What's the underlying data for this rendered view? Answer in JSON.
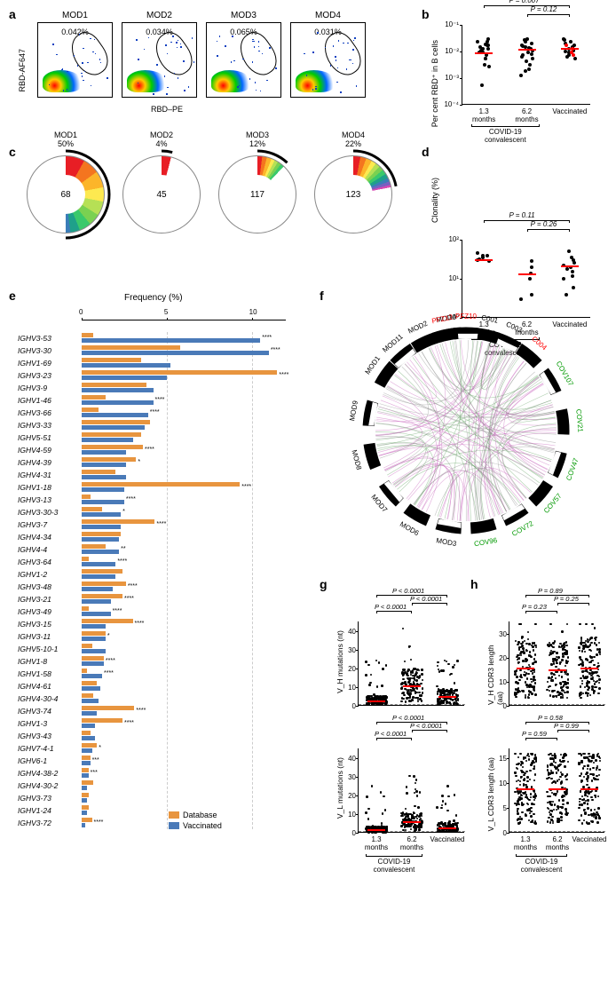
{
  "panel_a": {
    "label": "a",
    "y_axis": "RBD-AF647",
    "x_axis": "RBD–PE",
    "samples": [
      {
        "name": "MOD1",
        "pct": "0.042%"
      },
      {
        "name": "MOD2",
        "pct": "0.034%"
      },
      {
        "name": "MOD3",
        "pct": "0.065%"
      },
      {
        "name": "MOD4",
        "pct": "0.031%"
      }
    ]
  },
  "panel_b": {
    "label": "b",
    "type": "scatter",
    "y_axis": "Per cent RBD⁺ in B cells",
    "ylim": [
      0.0001,
      1
    ],
    "yscale": "log",
    "yticks": [
      "10⁻⁴",
      "10⁻³",
      "10⁻²",
      "10⁻¹"
    ],
    "x_categories": [
      "1.3\nmonths",
      "6.2\nmonths",
      "Vaccinated"
    ],
    "x_group_label": "COVID-19\nconvalescent",
    "pvals": [
      {
        "from": 0,
        "to": 2,
        "text": "P = 0.007"
      },
      {
        "from": 1,
        "to": 2,
        "text": "P = 0.12"
      }
    ],
    "median_color": "#ff0000",
    "medians": [
      0.04,
      0.06,
      0.07
    ],
    "data": [
      [
        0.001,
        0.008,
        0.01,
        0.02,
        0.02,
        0.03,
        0.04,
        0.04,
        0.05,
        0.06,
        0.06,
        0.08,
        0.1,
        0.1,
        0.11,
        0.15,
        0.15,
        0.2
      ],
      [
        0.003,
        0.005,
        0.006,
        0.01,
        0.015,
        0.02,
        0.025,
        0.03,
        0.035,
        0.04,
        0.05,
        0.06,
        0.07,
        0.08,
        0.09,
        0.1,
        0.12,
        0.14,
        0.18,
        0.2
      ],
      [
        0.02,
        0.025,
        0.03,
        0.04,
        0.045,
        0.05,
        0.06,
        0.07,
        0.08,
        0.1,
        0.12,
        0.15,
        0.18,
        0.2
      ]
    ],
    "red_points_group": 2,
    "red_points": [
      0.03,
      0.04,
      0.06,
      0.1
    ]
  },
  "panel_c": {
    "label": "c",
    "pies": [
      {
        "name": "MOD1",
        "pct": "50%",
        "n": 68,
        "slices": [
          {
            "color": "#e81e25",
            "frac": 0.08
          },
          {
            "color": "#f4751f",
            "frac": 0.07
          },
          {
            "color": "#fcb52a",
            "frac": 0.07
          },
          {
            "color": "#fde950",
            "frac": 0.06
          },
          {
            "color": "#b6e055",
            "frac": 0.06
          },
          {
            "color": "#7ad151",
            "frac": 0.05
          },
          {
            "color": "#3ac96b",
            "frac": 0.05
          },
          {
            "color": "#1fa08a",
            "frac": 0.04
          },
          {
            "color": "#3b7db8",
            "frac": 0.02
          }
        ],
        "arc_color": "#000"
      },
      {
        "name": "MOD2",
        "pct": "4%",
        "n": 45,
        "slices": [
          {
            "color": "#e81e25",
            "frac": 0.04
          }
        ],
        "arc_color": "#000"
      },
      {
        "name": "MOD3",
        "pct": "12%",
        "n": 117,
        "slices": [
          {
            "color": "#e81e25",
            "frac": 0.02
          },
          {
            "color": "#f4751f",
            "frac": 0.02
          },
          {
            "color": "#fcb52a",
            "frac": 0.02
          },
          {
            "color": "#fde950",
            "frac": 0.015
          },
          {
            "color": "#b6e055",
            "frac": 0.015
          },
          {
            "color": "#7ad151",
            "frac": 0.015
          },
          {
            "color": "#3ac96b",
            "frac": 0.015
          }
        ],
        "arc_color": "#000"
      },
      {
        "name": "MOD4",
        "pct": "22%",
        "n": 123,
        "slices": [
          {
            "color": "#e81e25",
            "frac": 0.03
          },
          {
            "color": "#f4751f",
            "frac": 0.025
          },
          {
            "color": "#fcb52a",
            "frac": 0.025
          },
          {
            "color": "#fde950",
            "frac": 0.02
          },
          {
            "color": "#b6e055",
            "frac": 0.02
          },
          {
            "color": "#7ad151",
            "frac": 0.02
          },
          {
            "color": "#3ac96b",
            "frac": 0.02
          },
          {
            "color": "#1fa08a",
            "frac": 0.02
          },
          {
            "color": "#3b7db8",
            "frac": 0.015
          },
          {
            "color": "#7860c0",
            "frac": 0.015
          },
          {
            "color": "#d748b3",
            "frac": 0.01
          }
        ],
        "arc_color": "#000"
      }
    ]
  },
  "panel_d": {
    "label": "d",
    "type": "scatter",
    "y_axis": "Clonality (%)",
    "ylim": [
      1,
      100
    ],
    "yscale": "log",
    "yticks": [
      "10⁰",
      "10¹",
      "10²"
    ],
    "x_categories": [
      "1.3\nmonths",
      "6.2\nmonths",
      "Vaccinated"
    ],
    "x_group_label": "COVID-19\nconvalescent",
    "pvals": [
      {
        "from": 0,
        "to": 2,
        "text": "P = 0.11"
      },
      {
        "from": 1,
        "to": 2,
        "text": "P = 0.26"
      }
    ],
    "median_color": "#ff0000",
    "medians": [
      32,
      14,
      22
    ],
    "data": [
      [
        28,
        30,
        32,
        35,
        38,
        40,
        45
      ],
      [
        3,
        4,
        10,
        14,
        20,
        28
      ],
      [
        4,
        6,
        10,
        12,
        15,
        18,
        20,
        22,
        25,
        30,
        35,
        50
      ]
    ]
  },
  "panel_e": {
    "label": "e",
    "type": "bar",
    "x_axis_title": "Frequency (%)",
    "xlim": [
      0,
      12
    ],
    "xticks": [
      0,
      5,
      10
    ],
    "gridline_color": "#cccccc",
    "legend": [
      {
        "label": "Database",
        "color": "#e8953f"
      },
      {
        "label": "Vaccinated",
        "color": "#4a7ab8"
      }
    ],
    "genes": [
      {
        "name": "IGHV3-53",
        "db": 0.7,
        "vac": 10.5,
        "sig": "****"
      },
      {
        "name": "IGHV3-30",
        "db": 5.8,
        "vac": 11.0,
        "sig": "****"
      },
      {
        "name": "IGHV1-69",
        "db": 3.5,
        "vac": 5.2,
        "sig": ""
      },
      {
        "name": "IGHV3-23",
        "db": 11.5,
        "vac": 5.0,
        "sig": "****"
      },
      {
        "name": "IGHV3-9",
        "db": 3.8,
        "vac": 4.2,
        "sig": ""
      },
      {
        "name": "IGHV1-46",
        "db": 1.4,
        "vac": 4.2,
        "sig": "****"
      },
      {
        "name": "IGHV3-66",
        "db": 1.0,
        "vac": 3.9,
        "sig": "****"
      },
      {
        "name": "IGHV3-33",
        "db": 4.0,
        "vac": 3.7,
        "sig": ""
      },
      {
        "name": "IGHV5-51",
        "db": 3.5,
        "vac": 3.0,
        "sig": ""
      },
      {
        "name": "IGHV4-59",
        "db": 3.6,
        "vac": 2.6,
        "sig": "****"
      },
      {
        "name": "IGHV4-39",
        "db": 3.2,
        "vac": 2.6,
        "sig": "*"
      },
      {
        "name": "IGHV4-31",
        "db": 2.0,
        "vac": 2.6,
        "sig": ""
      },
      {
        "name": "IGHV1-18",
        "db": 9.3,
        "vac": 2.5,
        "sig": "****"
      },
      {
        "name": "IGHV3-13",
        "db": 0.5,
        "vac": 2.5,
        "sig": "****"
      },
      {
        "name": "IGHV3-30-3",
        "db": 1.2,
        "vac": 2.3,
        "sig": "*"
      },
      {
        "name": "IGHV3-7",
        "db": 4.3,
        "vac": 2.3,
        "sig": "****"
      },
      {
        "name": "IGHV4-34",
        "db": 2.3,
        "vac": 2.2,
        "sig": ""
      },
      {
        "name": "IGHV4-4",
        "db": 1.4,
        "vac": 2.2,
        "sig": "**"
      },
      {
        "name": "IGHV3-64",
        "db": 0.4,
        "vac": 2.0,
        "sig": "****"
      },
      {
        "name": "IGHV1-2",
        "db": 2.4,
        "vac": 2.0,
        "sig": ""
      },
      {
        "name": "IGHV3-48",
        "db": 2.6,
        "vac": 1.8,
        "sig": "****"
      },
      {
        "name": "IGHV3-21",
        "db": 2.4,
        "vac": 1.7,
        "sig": "****"
      },
      {
        "name": "IGHV3-49",
        "db": 0.4,
        "vac": 1.7,
        "sig": "****"
      },
      {
        "name": "IGHV3-15",
        "db": 3.0,
        "vac": 1.4,
        "sig": "****"
      },
      {
        "name": "IGHV3-11",
        "db": 1.4,
        "vac": 1.4,
        "sig": "*"
      },
      {
        "name": "IGHV5-10-1",
        "db": 0.6,
        "vac": 1.4,
        "sig": ""
      },
      {
        "name": "IGHV1-8",
        "db": 1.3,
        "vac": 1.3,
        "sig": "****"
      },
      {
        "name": "IGHV1-58",
        "db": 0.3,
        "vac": 1.2,
        "sig": "****"
      },
      {
        "name": "IGHV4-61",
        "db": 0.9,
        "vac": 1.1,
        "sig": ""
      },
      {
        "name": "IGHV4-30-4",
        "db": 0.7,
        "vac": 1.0,
        "sig": ""
      },
      {
        "name": "IGHV3-74",
        "db": 3.1,
        "vac": 0.9,
        "sig": "****"
      },
      {
        "name": "IGHV1-3",
        "db": 2.4,
        "vac": 0.8,
        "sig": "****"
      },
      {
        "name": "IGHV3-43",
        "db": 0.5,
        "vac": 0.8,
        "sig": ""
      },
      {
        "name": "IGHV7-4-1",
        "db": 0.9,
        "vac": 0.6,
        "sig": "*"
      },
      {
        "name": "IGHV6-1",
        "db": 0.5,
        "vac": 0.5,
        "sig": "***"
      },
      {
        "name": "IGHV4-38-2",
        "db": 0.4,
        "vac": 0.4,
        "sig": "***"
      },
      {
        "name": "IGHV4-30-2",
        "db": 0.7,
        "vac": 0.3,
        "sig": ""
      },
      {
        "name": "IGHV3-73",
        "db": 0.4,
        "vac": 0.3,
        "sig": ""
      },
      {
        "name": "IGHV1-24",
        "db": 0.4,
        "vac": 0.3,
        "sig": ""
      },
      {
        "name": "IGHV3-72",
        "db": 0.6,
        "vac": 0.2,
        "sig": "****"
      }
    ]
  },
  "panel_f": {
    "label": "f",
    "type": "circos",
    "segment_colors": {
      "mod": "#000000",
      "pfz": "#ff0000",
      "c": "#000000",
      "cov": "#009900"
    },
    "chord_colors": [
      "#888888",
      "#5a9e5a",
      "#c458b8"
    ],
    "segments": [
      {
        "id": "MOD4",
        "color": "#000000",
        "angle": 350
      },
      {
        "id": "MOD2",
        "color": "#000000",
        "angle": 335
      },
      {
        "id": "MOD11",
        "color": "#000000",
        "angle": 320
      },
      {
        "id": "MOD1",
        "color": "#000000",
        "angle": 305
      },
      {
        "id": "MOD9",
        "color": "#000000",
        "angle": 280
      },
      {
        "id": "MOD8",
        "color": "#000000",
        "angle": 255
      },
      {
        "id": "MOD7",
        "color": "#000000",
        "angle": 230
      },
      {
        "id": "MOD6",
        "color": "#000000",
        "angle": 210
      },
      {
        "id": "MOD3",
        "color": "#000000",
        "angle": 190
      },
      {
        "id": "COV96",
        "color": "#009900",
        "angle": 170
      },
      {
        "id": "COV72",
        "color": "#009900",
        "angle": 150
      },
      {
        "id": "COV57",
        "color": "#009900",
        "angle": 130
      },
      {
        "id": "COV47",
        "color": "#009900",
        "angle": 110
      },
      {
        "id": "COV21",
        "color": "#009900",
        "angle": 85
      },
      {
        "id": "COV107",
        "color": "#009900",
        "angle": 60
      },
      {
        "id": "C004",
        "color": "#ff0000",
        "angle": 40
      },
      {
        "id": "C003",
        "color": "#000000",
        "angle": 25
      },
      {
        "id": "C001",
        "color": "#000000",
        "angle": 12
      },
      {
        "id": "PFZ10",
        "color": "#ff0000",
        "angle": 0
      },
      {
        "id": "PFZ12",
        "color": "#ff0000",
        "angle": -12
      }
    ]
  },
  "panel_g": {
    "label": "g",
    "charts": [
      {
        "y_axis": "V_H mutations (nt)",
        "ylim": [
          0,
          45
        ],
        "yticks": [
          0,
          10,
          20,
          30,
          40
        ],
        "pvals": [
          {
            "from": 0,
            "to": 2,
            "text": "P < 0.0001"
          },
          {
            "from": 1,
            "to": 2,
            "text": "P < 0.0001"
          },
          {
            "from": 0,
            "to": 1,
            "text": "P < 0.0001"
          }
        ],
        "medians": [
          3,
          11,
          5
        ]
      },
      {
        "y_axis": "V_L mutations (nt)",
        "ylim": [
          0,
          45
        ],
        "yticks": [
          0,
          10,
          20,
          30,
          40
        ],
        "pvals": [
          {
            "from": 0,
            "to": 2,
            "text": "P < 0.0001"
          },
          {
            "from": 1,
            "to": 2,
            "text": "P < 0.0001"
          },
          {
            "from": 0,
            "to": 1,
            "text": "P < 0.0001"
          }
        ],
        "medians": [
          2,
          6,
          3
        ]
      }
    ],
    "x_categories": [
      "1.3\nmonths",
      "6.2\nmonths",
      "Vaccinated"
    ],
    "x_group_label": "COVID-19\nconvalescent"
  },
  "panel_h": {
    "label": "h",
    "charts": [
      {
        "y_axis": "V_H CDR3 length (aa)",
        "ylim": [
          0,
          35
        ],
        "yticks": [
          0,
          10,
          20,
          30
        ],
        "pvals": [
          {
            "from": 0,
            "to": 2,
            "text": "P = 0.89"
          },
          {
            "from": 1,
            "to": 2,
            "text": "P = 0.25"
          },
          {
            "from": 0,
            "to": 1,
            "text": "P = 0.23"
          }
        ],
        "medians": [
          16,
          15,
          16
        ]
      },
      {
        "y_axis": "V_L CDR3 length (aa)",
        "ylim": [
          0,
          17
        ],
        "yticks": [
          0,
          5,
          10,
          15
        ],
        "pvals": [
          {
            "from": 0,
            "to": 2,
            "text": "P = 0.58"
          },
          {
            "from": 1,
            "to": 2,
            "text": "P = 0.99"
          },
          {
            "from": 0,
            "to": 1,
            "text": "P = 0.59"
          }
        ],
        "medians": [
          9,
          9,
          9
        ]
      }
    ],
    "x_categories": [
      "1.3\nmonths",
      "6.2\nmonths",
      "Vaccinated"
    ],
    "x_group_label": "COVID-19\nconvalescent"
  }
}
